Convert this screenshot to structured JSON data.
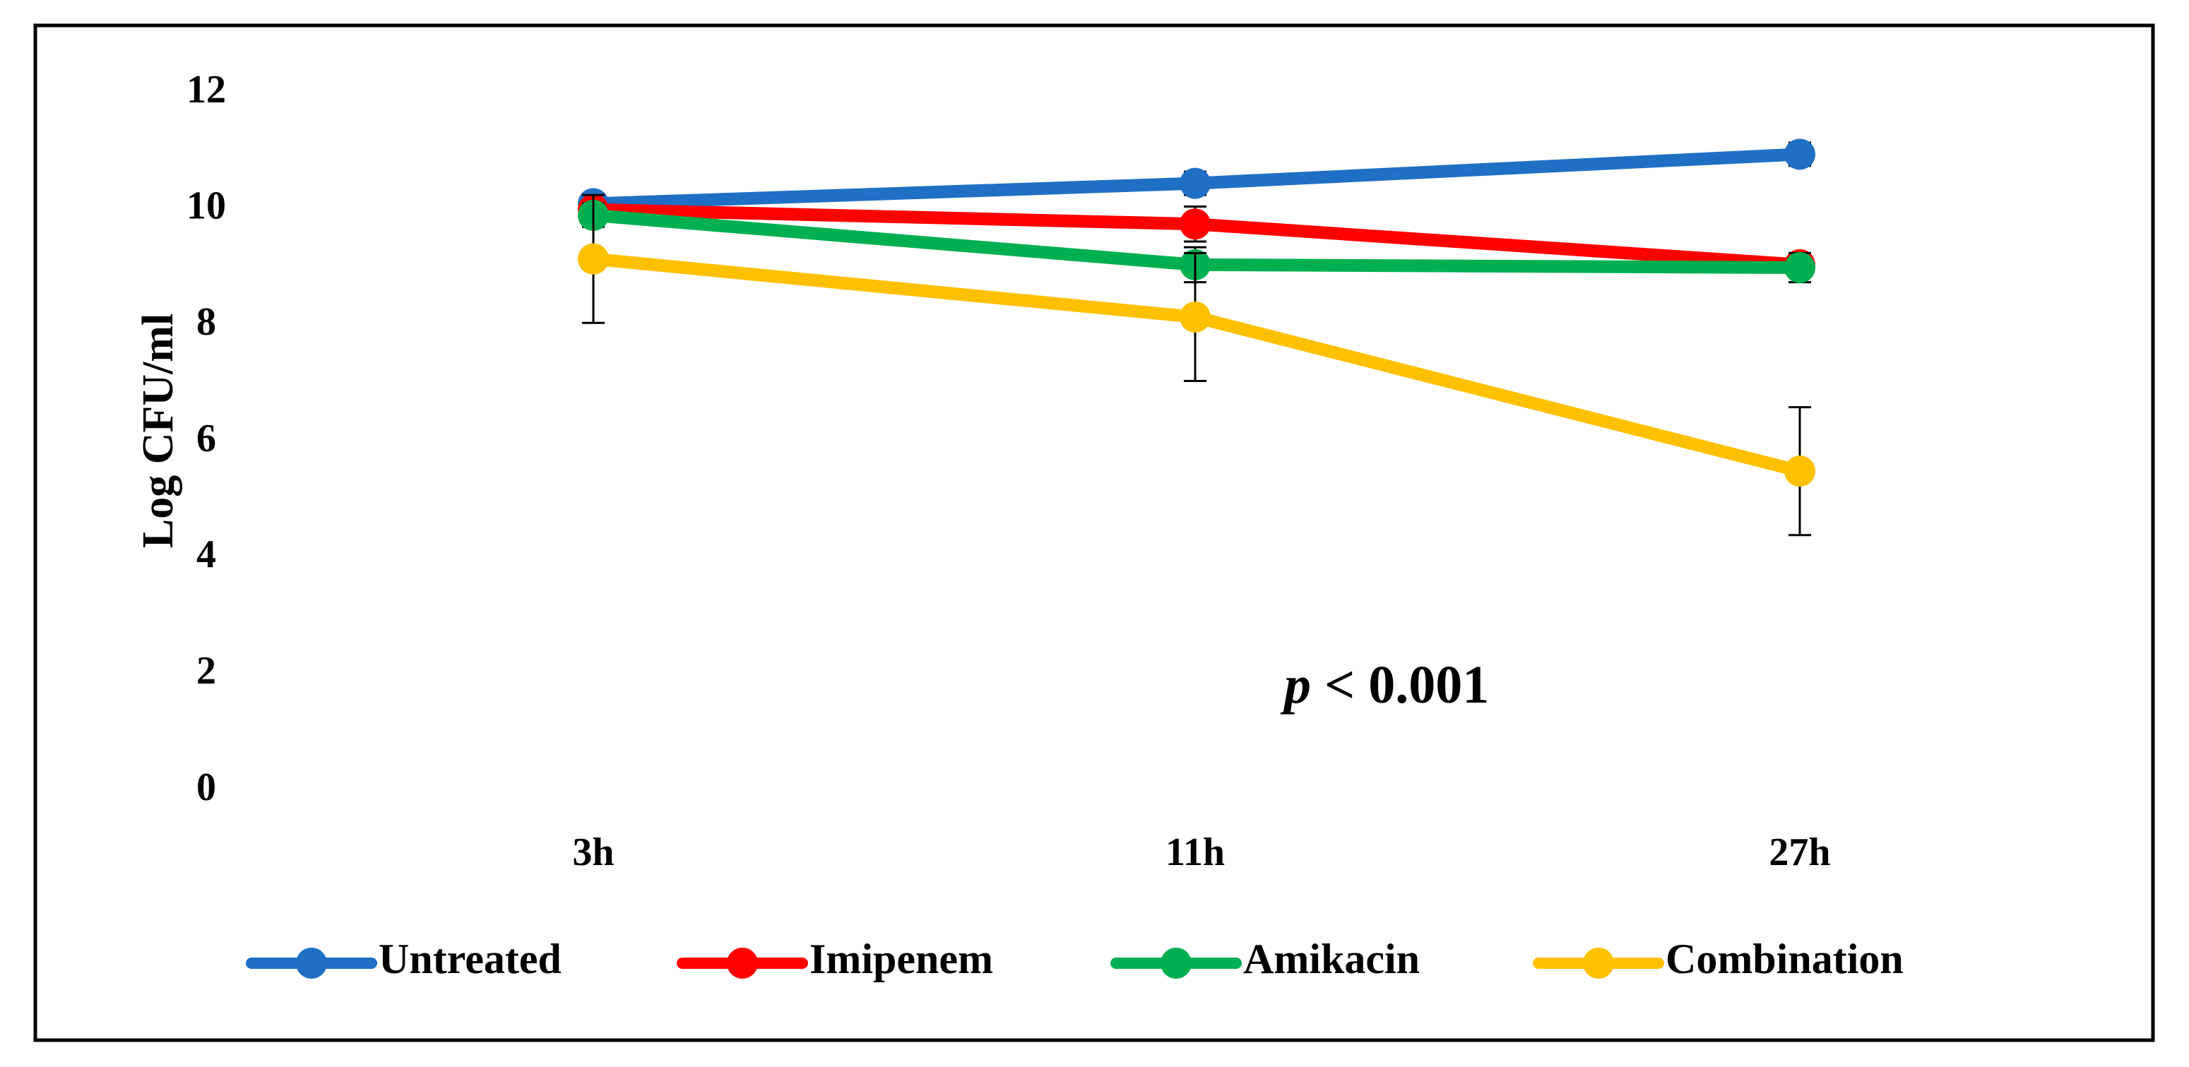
{
  "chart_data": {
    "type": "line",
    "categories": [
      "3h",
      "11h",
      "27h"
    ],
    "ylabel": "Log CFU/ml",
    "xlabel": "",
    "ylim": [
      0,
      12
    ],
    "yticks": [
      "0",
      "2",
      "4",
      "6",
      "8",
      "10",
      "12"
    ],
    "grid": false,
    "legend_position": "bottom",
    "series": [
      {
        "name": "Untreated",
        "color": "#1F6FC5",
        "values": [
          10.1,
          10.45,
          10.95
        ],
        "errors": [
          0.12,
          0.2,
          0.2
        ]
      },
      {
        "name": "Imipenem",
        "color": "#FF0000",
        "values": [
          10.0,
          9.75,
          9.05
        ],
        "errors": [
          0.15,
          0.3,
          0.2
        ]
      },
      {
        "name": "Amikacin",
        "color": "#00B050",
        "values": [
          9.9,
          9.05,
          9.0
        ],
        "errors": [
          0.2,
          0.3,
          0.25
        ]
      },
      {
        "name": "Combination",
        "color": "#FFC000",
        "values": [
          9.15,
          8.15,
          5.5
        ],
        "errors": [
          1.1,
          1.1,
          1.1
        ]
      }
    ],
    "annotation": {
      "italic": "p",
      "rest": " < 0.001"
    }
  }
}
